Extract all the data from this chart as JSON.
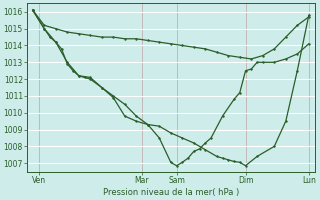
{
  "background_color": "#ceecea",
  "grid_color_major": "#b8d8d4",
  "grid_color_minor": "#d8efec",
  "line_color": "#2a5e2a",
  "xlabel": "Pression niveau de la mer( hPa )",
  "ylim": [
    1006.5,
    1016.5
  ],
  "yticks": [
    1007,
    1008,
    1009,
    1010,
    1011,
    1012,
    1013,
    1014,
    1015,
    1016
  ],
  "xlim": [
    0,
    25
  ],
  "xtick_labels": [
    "Ven",
    "Mar",
    "Sam",
    "Dim",
    "Lun"
  ],
  "xtick_positions": [
    1,
    10,
    13,
    19,
    24.5
  ],
  "vlines": [
    1,
    10,
    13,
    19,
    24.5
  ],
  "s1_x": [
    0.5,
    1.5,
    2.5,
    3.5,
    4.5,
    5.5,
    6.5,
    7.5,
    8.5,
    9.5,
    10.5,
    11.5,
    12.5,
    13.5,
    14.5,
    15.5,
    16.5,
    17.5,
    18.5,
    19.5,
    20.5,
    21.5,
    22.5,
    23.5,
    24.5
  ],
  "s1_y": [
    1016.1,
    1015.2,
    1015.0,
    1014.8,
    1014.7,
    1014.6,
    1014.5,
    1014.5,
    1014.4,
    1014.4,
    1014.3,
    1014.2,
    1014.1,
    1014.0,
    1013.9,
    1013.8,
    1013.6,
    1013.4,
    1013.3,
    1013.2,
    1013.4,
    1013.8,
    1014.5,
    1015.2,
    1015.7
  ],
  "s2_x": [
    0.5,
    1.5,
    2.5,
    3.5,
    4.5,
    5.5,
    6.5,
    7.5,
    8.5,
    9.5,
    10.5,
    11.5,
    12.5,
    13.0,
    13.5,
    14.0,
    14.5,
    15.0,
    15.5,
    16.0,
    17.0,
    18.0,
    18.5,
    19.0,
    19.5,
    20.0,
    20.5,
    21.5,
    22.5,
    23.5,
    24.5
  ],
  "s2_y": [
    1016.1,
    1015.0,
    1014.2,
    1013.0,
    1012.2,
    1012.1,
    1011.5,
    1011.0,
    1010.5,
    1009.8,
    1009.3,
    1008.5,
    1007.05,
    1006.85,
    1007.05,
    1007.3,
    1007.7,
    1007.85,
    1008.2,
    1008.5,
    1009.8,
    1010.8,
    1011.2,
    1012.5,
    1012.6,
    1013.0,
    1013.0,
    1013.0,
    1013.2,
    1013.5,
    1014.1
  ],
  "s3_x": [
    0.5,
    1.5,
    2.0,
    2.5,
    3.0,
    3.5,
    4.0,
    4.5,
    5.0,
    5.5,
    6.5,
    7.5,
    8.5,
    9.5,
    10.5,
    11.5,
    12.5,
    13.5,
    14.5,
    15.5,
    16.5,
    17.0,
    17.5,
    18.0,
    18.5,
    19.0,
    20.0,
    21.5,
    22.5,
    23.5,
    24.5
  ],
  "s3_y": [
    1016.1,
    1015.0,
    1014.5,
    1014.2,
    1013.8,
    1012.9,
    1012.5,
    1012.2,
    1012.1,
    1012.0,
    1011.5,
    1010.9,
    1009.8,
    1009.5,
    1009.3,
    1009.2,
    1008.8,
    1008.5,
    1008.2,
    1007.8,
    1007.4,
    1007.3,
    1007.2,
    1007.1,
    1007.05,
    1006.85,
    1007.4,
    1008.0,
    1009.5,
    1012.5,
    1015.8
  ]
}
